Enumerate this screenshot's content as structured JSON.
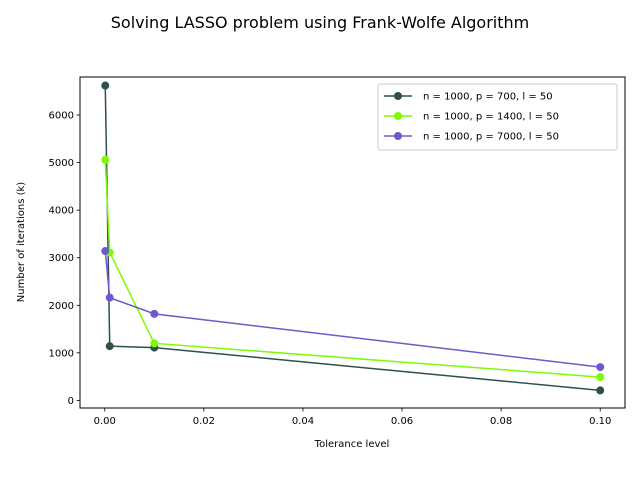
{
  "chart_data": {
    "type": "line",
    "title": "Solving LASSO problem using Frank-Wolfe Algorithm",
    "xlabel": "Tolerance level",
    "ylabel": "Number of iterations (k)",
    "xlim": [
      -0.005,
      0.105
    ],
    "ylim": [
      -160,
      6800
    ],
    "xticks": [
      0.0,
      0.02,
      0.04,
      0.06,
      0.08,
      0.1
    ],
    "xtick_labels": [
      "0.00",
      "0.02",
      "0.04",
      "0.06",
      "0.08",
      "0.10"
    ],
    "yticks": [
      0,
      1000,
      2000,
      3000,
      4000,
      5000,
      6000
    ],
    "ytick_labels": [
      "0",
      "1000",
      "2000",
      "3000",
      "4000",
      "5000",
      "6000"
    ],
    "grid": false,
    "legend_position": "upper right",
    "x": [
      0.0001,
      0.001,
      0.01,
      0.1
    ],
    "series": [
      {
        "name": "n = 1000, p = 700, l = 50",
        "color": "#2f4f4f",
        "values": [
          6620,
          1140,
          1110,
          210
        ]
      },
      {
        "name": "n = 1000, p = 1400, l = 50",
        "color": "#7cfc00",
        "values": [
          5060,
          3110,
          1200,
          490
        ]
      },
      {
        "name": "n = 1000, p = 7000, l = 50",
        "color": "#6a5acd",
        "values": [
          3140,
          2160,
          1820,
          700
        ]
      }
    ]
  }
}
